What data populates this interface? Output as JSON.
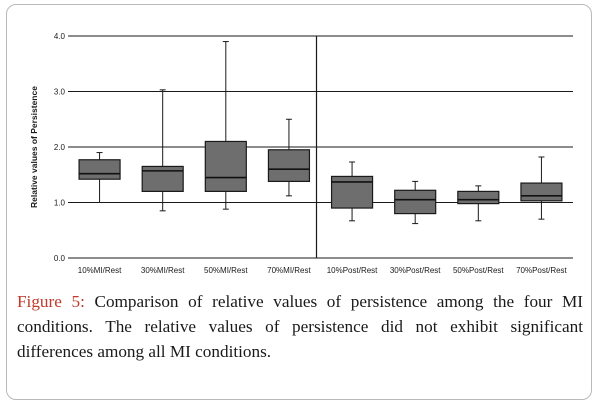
{
  "chart_data": {
    "type": "box",
    "ylabel": "Relative values of Persistence",
    "ylim": [
      0,
      4
    ],
    "yticks": [
      0,
      1,
      2,
      3,
      4
    ],
    "ytick_labels": [
      "0.0",
      "1.0",
      "2.0",
      "3.0",
      "4.0"
    ],
    "grid": "horizontal",
    "separator_after_category": 4,
    "categories": [
      "10%MI/Rest",
      "30%MI/Rest",
      "50%MI/Rest",
      "70%MI/Rest",
      "10%Post/Rest",
      "30%Post/Rest",
      "50%Post/Rest",
      "70%Post/Rest"
    ],
    "boxes": [
      {
        "min": 1.0,
        "q1": 1.42,
        "median": 1.52,
        "q3": 1.77,
        "max": 1.9
      },
      {
        "min": 0.85,
        "q1": 1.2,
        "median": 1.57,
        "q3": 1.65,
        "max": 3.03
      },
      {
        "min": 0.88,
        "q1": 1.2,
        "median": 1.45,
        "q3": 2.1,
        "max": 3.9
      },
      {
        "min": 1.12,
        "q1": 1.38,
        "median": 1.6,
        "q3": 1.95,
        "max": 2.5
      },
      {
        "min": 0.67,
        "q1": 0.9,
        "median": 1.37,
        "q3": 1.47,
        "max": 1.73
      },
      {
        "min": 0.62,
        "q1": 0.8,
        "median": 1.05,
        "q3": 1.22,
        "max": 1.38
      },
      {
        "min": 0.67,
        "q1": 0.98,
        "median": 1.05,
        "q3": 1.2,
        "max": 1.3
      },
      {
        "min": 0.7,
        "q1": 1.03,
        "median": 1.12,
        "q3": 1.35,
        "max": 1.82
      }
    ],
    "colors": {
      "box_fill": "#6e6e6e",
      "box_stroke": "#1a1a1a",
      "median": "#111111",
      "grid": "#1a1a1a",
      "separator": "#1a1a1a"
    }
  },
  "caption": {
    "label": "Figure 5:",
    "text": "Comparison of relative values of persistence among the four MI conditions. The relative values of persistence did not exhibit significant differences among all MI conditions."
  }
}
